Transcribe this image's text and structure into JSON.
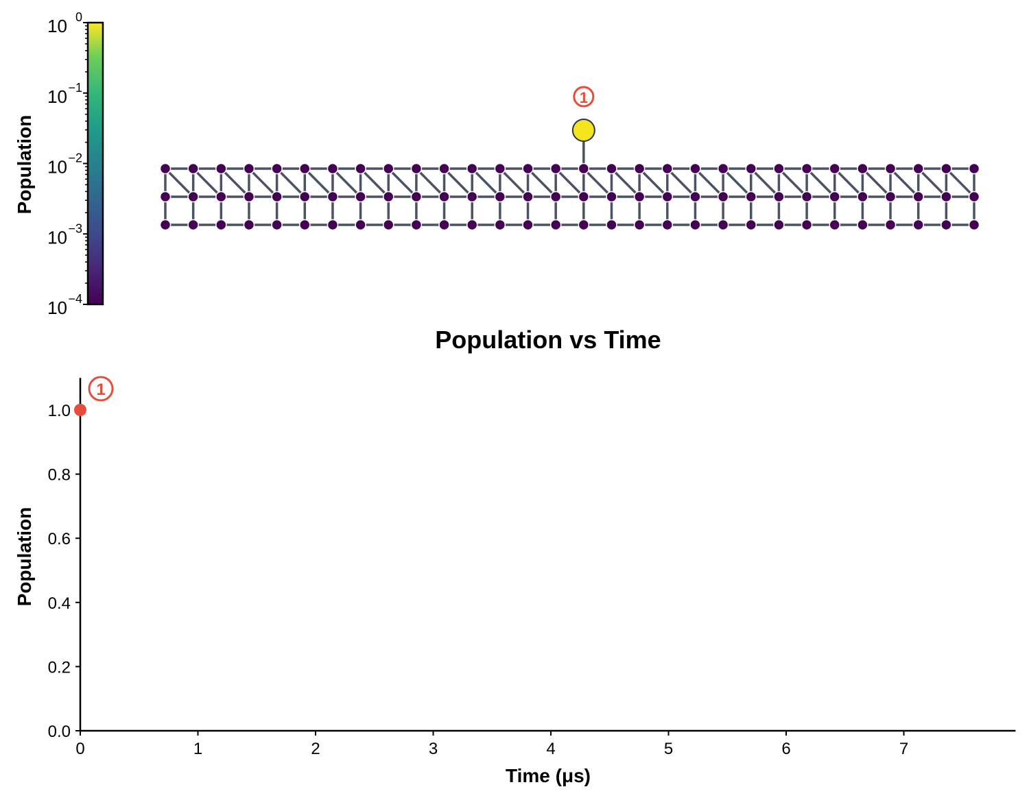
{
  "colorbar": {
    "label": "Population",
    "scale": "log",
    "range": [
      0.0001,
      1
    ],
    "colormap": "viridis",
    "ticks": [
      {
        "base": "10",
        "exp": "0"
      },
      {
        "base": "10",
        "exp": "−1"
      },
      {
        "base": "10",
        "exp": "−2"
      },
      {
        "base": "10",
        "exp": "−3"
      },
      {
        "base": "10",
        "exp": "−4"
      }
    ]
  },
  "lattice": {
    "rows": 3,
    "columns": 30,
    "node_color": "#440154",
    "edge_color": "#4a5264",
    "edges": "horizontal, vertical, and diagonal from top row column i to middle row column i+1",
    "highlighted_site": {
      "column": 15,
      "population": 1.0,
      "color": "#f2e51d",
      "marker": "1"
    },
    "marker_color": "#e74c3c"
  },
  "chart_data": {
    "type": "scatter",
    "title": "Population vs Time",
    "xlabel": "Time (μs)",
    "ylabel": "Population",
    "xlim": [
      0,
      7.95
    ],
    "ylim": [
      0,
      1.1
    ],
    "xticks": [
      "0",
      "1",
      "2",
      "3",
      "4",
      "5",
      "6",
      "7"
    ],
    "yticks": [
      "0.0",
      "0.2",
      "0.4",
      "0.6",
      "0.8",
      "1.0"
    ],
    "grid": false,
    "series": [
      {
        "marker_label": "1",
        "color": "#e74c3c",
        "points": [
          {
            "x": 0,
            "y": 1.0
          }
        ]
      }
    ]
  }
}
